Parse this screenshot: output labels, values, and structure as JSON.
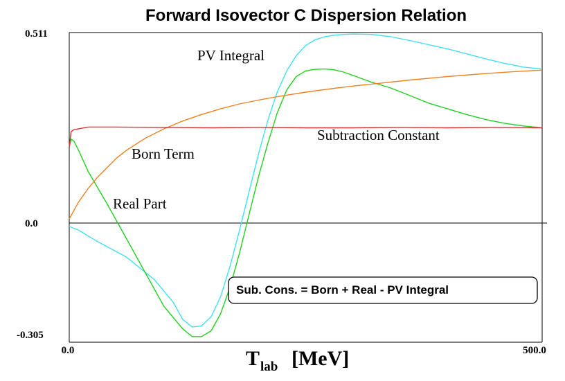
{
  "chart_data": {
    "type": "line",
    "title": "Forward Isovector C  Dispersion Relation",
    "xlabel": "T",
    "xlabel_sub": "lab",
    "xlabel_unit": "[MeV]",
    "xlim": [
      0.0,
      500.0
    ],
    "ylim": [
      -0.305,
      0.511
    ],
    "x_tick_labels": [
      "0.0",
      "500.0"
    ],
    "y_tick_labels": [
      "0.511",
      "0.0",
      "-0.305"
    ],
    "grid": false,
    "legend": "none",
    "annotation_box": "Sub. Cons. = Born + Real - PV Integral",
    "series": [
      {
        "name": "PV Integral",
        "color": "#40e0f0",
        "x": [
          0,
          10,
          30,
          60,
          90,
          110,
          120,
          130,
          140,
          150,
          160,
          170,
          180,
          190,
          200,
          210,
          220,
          230,
          240,
          250,
          260,
          270,
          280,
          290,
          300,
          320,
          340,
          360,
          380,
          400,
          420,
          440,
          460,
          480,
          500
        ],
        "y": [
          0.0,
          -0.01,
          -0.04,
          -0.08,
          -0.14,
          -0.2,
          -0.245,
          -0.265,
          -0.262,
          -0.238,
          -0.185,
          -0.105,
          -0.01,
          0.09,
          0.19,
          0.28,
          0.355,
          0.41,
          0.45,
          0.477,
          0.492,
          0.5,
          0.504,
          0.506,
          0.507,
          0.506,
          0.5,
          0.49,
          0.479,
          0.468,
          0.455,
          0.442,
          0.43,
          0.42,
          0.415
        ]
      },
      {
        "name": "Real Part",
        "color": "#20d020",
        "x": [
          0,
          2,
          5,
          10,
          20,
          40,
          60,
          80,
          100,
          120,
          130,
          140,
          150,
          160,
          170,
          180,
          190,
          200,
          210,
          220,
          230,
          240,
          250,
          260,
          270,
          280,
          290,
          300,
          320,
          340,
          360,
          380,
          400,
          420,
          440,
          460,
          480,
          500
        ],
        "y": [
          0.21,
          0.23,
          0.225,
          0.2,
          0.145,
          0.06,
          -0.03,
          -0.12,
          -0.21,
          -0.27,
          -0.29,
          -0.29,
          -0.275,
          -0.23,
          -0.16,
          -0.07,
          0.03,
          0.13,
          0.22,
          0.3,
          0.36,
          0.395,
          0.41,
          0.414,
          0.415,
          0.413,
          0.407,
          0.398,
          0.38,
          0.365,
          0.345,
          0.325,
          0.31,
          0.295,
          0.282,
          0.272,
          0.265,
          0.26
        ]
      },
      {
        "name": "Born Term",
        "color": "#f08020",
        "x": [
          0,
          10,
          20,
          30,
          40,
          50,
          60,
          80,
          100,
          120,
          140,
          160,
          180,
          200,
          220,
          250,
          280,
          300,
          330,
          360,
          400,
          440,
          470,
          500
        ],
        "y": [
          0.02,
          0.065,
          0.1,
          0.13,
          0.155,
          0.18,
          0.2,
          0.232,
          0.257,
          0.278,
          0.295,
          0.31,
          0.323,
          0.333,
          0.342,
          0.354,
          0.364,
          0.37,
          0.378,
          0.386,
          0.395,
          0.403,
          0.408,
          0.412
        ]
      },
      {
        "name": "Subtraction Constant",
        "color": "#e03030",
        "x": [
          0,
          2,
          5,
          20,
          50,
          100,
          150,
          200,
          250,
          300,
          350,
          400,
          450,
          500
        ],
        "y": [
          0.21,
          0.25,
          0.255,
          0.262,
          0.262,
          0.261,
          0.26,
          0.261,
          0.26,
          0.26,
          0.261,
          0.26,
          0.261,
          0.26
        ]
      }
    ],
    "annotations": [
      "PV Integral",
      "Subtraction Constant",
      "Born Term",
      "Real Part"
    ]
  }
}
